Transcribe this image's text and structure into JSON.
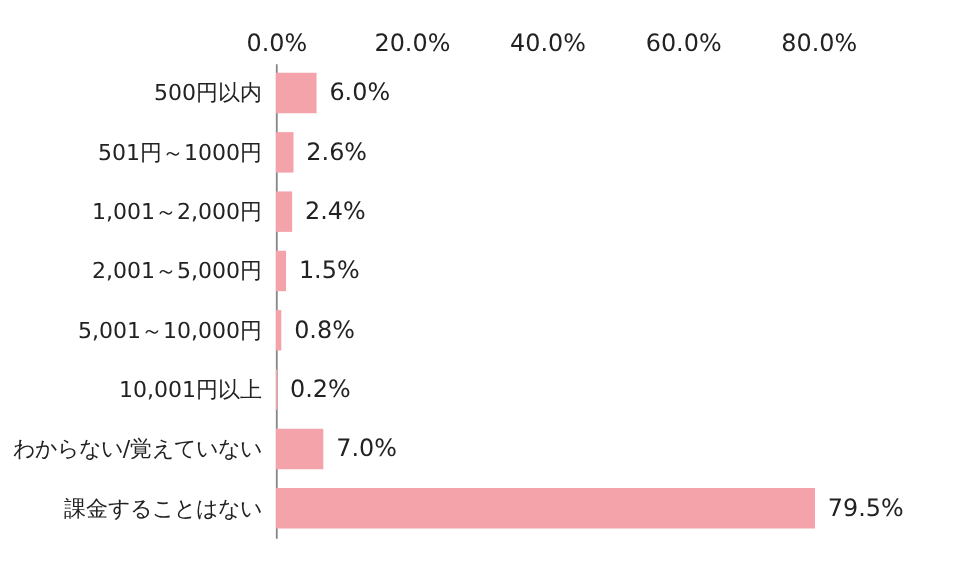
{
  "chart_data": {
    "type": "bar",
    "orientation": "horizontal",
    "categories": [
      "500円以内",
      "501円～1000円",
      "1,001～2,000円",
      "2,001～5,000円",
      "5,001～10,000円",
      "10,001円以上",
      "わからない/覚えていない",
      "課金することはない"
    ],
    "values": [
      6.0,
      2.6,
      2.4,
      1.5,
      0.8,
      0.2,
      7.0,
      79.5
    ],
    "value_labels": [
      "6.0%",
      "2.6%",
      "2.4%",
      "1.5%",
      "0.8%",
      "0.2%",
      "7.0%",
      "79.5%"
    ],
    "color": "#f4a3ab",
    "xlim": [
      0,
      80
    ],
    "xticks": [
      {
        "value": 0,
        "label": "0.0%"
      },
      {
        "value": 20,
        "label": "20.0%"
      },
      {
        "value": 40,
        "label": "40.0%"
      },
      {
        "value": 60,
        "label": "60.0%"
      },
      {
        "value": 80,
        "label": "80.0%"
      }
    ],
    "grid": false
  }
}
